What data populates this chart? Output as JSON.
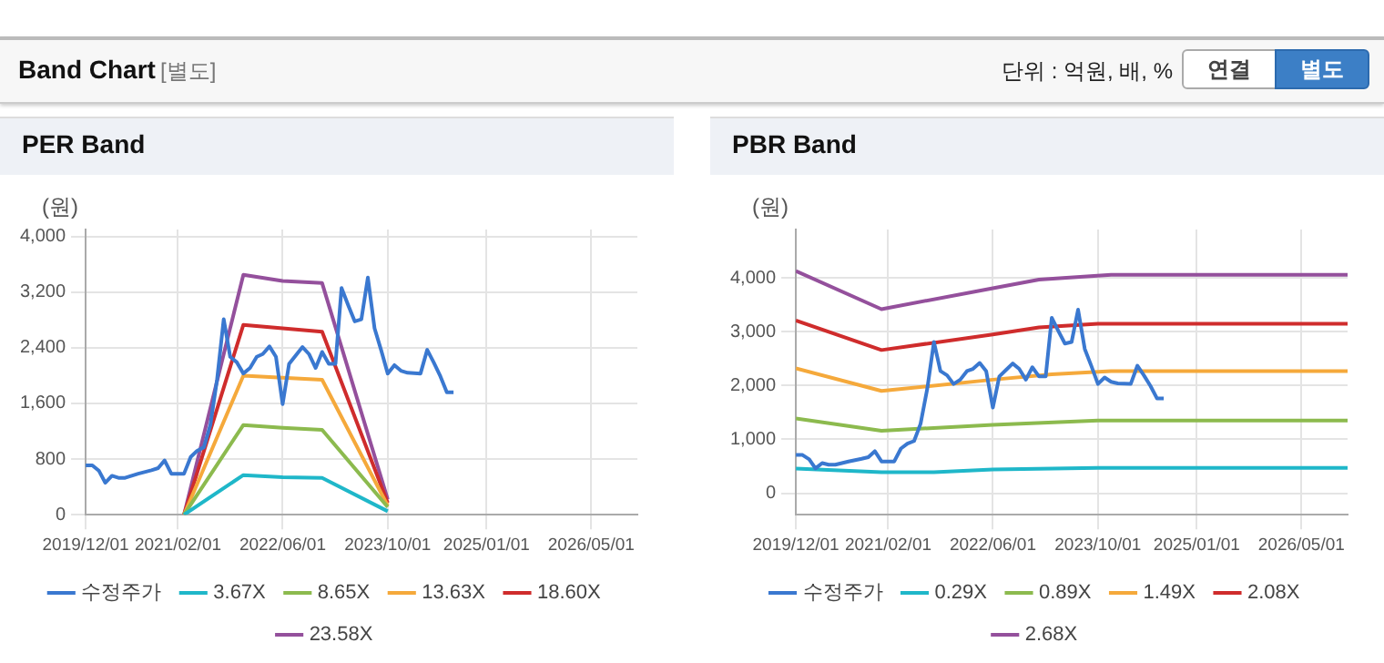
{
  "chart_data": [
    {
      "type": "line",
      "title": "PER Band",
      "ylabel": "(원)",
      "annotations": [
        "Band Chart",
        "[별도]",
        "단위 : 억원, 배, %",
        "연결",
        "별도"
      ],
      "xlim": [
        "2019-12-01",
        "2026-12-01"
      ],
      "xticks": [
        {
          "value": "2019-12-01",
          "label": "2019/12/01"
        },
        {
          "value": "2021-02-01",
          "label": "2021/02/01"
        },
        {
          "value": "2022-06-01",
          "label": "2022/06/01"
        },
        {
          "value": "2023-10-01",
          "label": "2023/10/01"
        },
        {
          "value": "2025-01-01",
          "label": "2025/01/01"
        },
        {
          "value": "2026-05-01",
          "label": "2026/05/01"
        }
      ],
      "ylim": [
        0,
        4100
      ],
      "yticks": [
        {
          "value": 0,
          "label": "0"
        },
        {
          "value": 800,
          "label": "800"
        },
        {
          "value": 1600,
          "label": "1,600"
        },
        {
          "value": 2400,
          "label": "2,400"
        },
        {
          "value": 3200,
          "label": "3,200"
        },
        {
          "value": 4000,
          "label": "4,000"
        }
      ],
      "grid": true,
      "legend": "bottom",
      "marker": "none",
      "line_style": "solid",
      "series": [
        {
          "name": "수정주가",
          "color": "#3a78d0",
          "x": [
            "2019-12",
            "2020-01",
            "2020-02",
            "2020-03",
            "2020-04",
            "2020-05",
            "2020-06",
            "2020-08",
            "2020-10",
            "2020-11",
            "2020-12",
            "2021-01",
            "2021-02",
            "2021-03",
            "2021-04",
            "2021-05",
            "2021-06",
            "2021-07",
            "2021-08",
            "2021-09",
            "2021-10",
            "2021-11",
            "2021-12",
            "2022-01",
            "2022-02",
            "2022-03",
            "2022-04",
            "2022-05",
            "2022-06",
            "2022-07",
            "2022-08",
            "2022-09",
            "2022-10",
            "2022-11",
            "2022-12",
            "2023-01",
            "2023-02",
            "2023-03",
            "2023-04",
            "2023-05",
            "2023-06",
            "2023-07",
            "2023-08",
            "2023-09",
            "2023-10",
            "2023-11",
            "2023-12",
            "2024-01",
            "2024-03",
            "2024-04",
            "2024-05",
            "2024-06",
            "2024-07",
            "2024-08"
          ],
          "values": [
            710,
            710,
            630,
            460,
            560,
            530,
            530,
            590,
            640,
            670,
            780,
            590,
            590,
            590,
            830,
            920,
            970,
            1290,
            1940,
            2810,
            2270,
            2190,
            2030,
            2110,
            2270,
            2310,
            2420,
            2270,
            1590,
            2170,
            2290,
            2410,
            2310,
            2110,
            2340,
            2170,
            2170,
            3260,
            3010,
            2780,
            2810,
            3410,
            2680,
            2360,
            2030,
            2150,
            2070,
            2040,
            2030,
            2370,
            2190,
            1990,
            1760,
            1760
          ]
        },
        {
          "name": "3.67X",
          "color": "#1fb7c9",
          "x": [
            "2021-03",
            "2021-12",
            "2022-06",
            "2022-12",
            "2023-10"
          ],
          "values": [
            0,
            570,
            540,
            530,
            50
          ]
        },
        {
          "name": "8.65X",
          "color": "#8cba4e",
          "x": [
            "2021-03",
            "2021-12",
            "2022-06",
            "2022-12",
            "2023-10"
          ],
          "values": [
            0,
            1290,
            1250,
            1220,
            110
          ]
        },
        {
          "name": "13.63X",
          "color": "#f5a93b",
          "x": [
            "2021-03",
            "2021-12",
            "2022-06",
            "2022-12",
            "2023-10"
          ],
          "values": [
            0,
            2000,
            1970,
            1940,
            130
          ]
        },
        {
          "name": "18.60X",
          "color": "#cf2c2c",
          "x": [
            "2021-03",
            "2021-12",
            "2022-06",
            "2022-12",
            "2023-10"
          ],
          "values": [
            0,
            2730,
            2680,
            2630,
            170
          ]
        },
        {
          "name": "23.58X",
          "color": "#94509c",
          "x": [
            "2021-03",
            "2021-12",
            "2022-06",
            "2022-12",
            "2023-10"
          ],
          "values": [
            0,
            3450,
            3360,
            3330,
            220
          ]
        }
      ]
    },
    {
      "type": "line",
      "title": "PBR Band",
      "ylabel": "(원)",
      "xlim": [
        "2019-12-01",
        "2026-12-01"
      ],
      "xticks": [
        {
          "value": "2019-12-01",
          "label": "2019/12/01"
        },
        {
          "value": "2021-02-01",
          "label": "2021/02/01"
        },
        {
          "value": "2022-06-01",
          "label": "2022/06/01"
        },
        {
          "value": "2023-10-01",
          "label": "2023/10/01"
        },
        {
          "value": "2025-01-01",
          "label": "2025/01/01"
        },
        {
          "value": "2026-05-01",
          "label": "2026/05/01"
        }
      ],
      "ylim": [
        -400,
        4900
      ],
      "yticks": [
        {
          "value": 0,
          "label": "0"
        },
        {
          "value": 1000,
          "label": "1,000"
        },
        {
          "value": 2000,
          "label": "2,000"
        },
        {
          "value": 3000,
          "label": "3,000"
        },
        {
          "value": 4000,
          "label": "4,000"
        }
      ],
      "grid": true,
      "legend": "bottom",
      "marker": "none",
      "line_style": "solid",
      "series": [
        {
          "name": "수정주가",
          "color": "#3a78d0",
          "x": [
            "2019-12",
            "2020-01",
            "2020-02",
            "2020-03",
            "2020-04",
            "2020-05",
            "2020-06",
            "2020-08",
            "2020-10",
            "2020-11",
            "2020-12",
            "2021-01",
            "2021-02",
            "2021-03",
            "2021-04",
            "2021-05",
            "2021-06",
            "2021-07",
            "2021-08",
            "2021-09",
            "2021-10",
            "2021-11",
            "2021-12",
            "2022-01",
            "2022-02",
            "2022-03",
            "2022-04",
            "2022-05",
            "2022-06",
            "2022-07",
            "2022-08",
            "2022-09",
            "2022-10",
            "2022-11",
            "2022-12",
            "2023-01",
            "2023-02",
            "2023-03",
            "2023-04",
            "2023-05",
            "2023-06",
            "2023-07",
            "2023-08",
            "2023-09",
            "2023-10",
            "2023-11",
            "2023-12",
            "2024-01",
            "2024-03",
            "2024-04",
            "2024-05",
            "2024-06",
            "2024-07",
            "2024-08"
          ],
          "values": [
            710,
            710,
            630,
            460,
            560,
            530,
            530,
            590,
            640,
            670,
            780,
            590,
            590,
            590,
            830,
            920,
            970,
            1290,
            1940,
            2810,
            2270,
            2190,
            2030,
            2110,
            2270,
            2310,
            2420,
            2270,
            1590,
            2170,
            2290,
            2410,
            2310,
            2110,
            2340,
            2170,
            2170,
            3260,
            3010,
            2780,
            2810,
            3410,
            2680,
            2360,
            2030,
            2150,
            2070,
            2040,
            2030,
            2370,
            2190,
            1990,
            1760,
            1760
          ]
        },
        {
          "name": "0.29X",
          "color": "#1fb7c9",
          "x": [
            "2019-12",
            "2021-01",
            "2021-09",
            "2022-06",
            "2023-10",
            "2026-12"
          ],
          "values": [
            460,
            390,
            390,
            440,
            470,
            470
          ]
        },
        {
          "name": "0.89X",
          "color": "#8cba4e",
          "x": [
            "2019-12",
            "2021-01",
            "2022-06",
            "2023-10",
            "2026-12"
          ],
          "values": [
            1390,
            1160,
            1270,
            1350,
            1350
          ]
        },
        {
          "name": "1.49X",
          "color": "#f5a93b",
          "x": [
            "2019-12",
            "2021-01",
            "2022-06",
            "2023-03",
            "2023-12",
            "2026-12"
          ],
          "values": [
            2320,
            1900,
            2110,
            2210,
            2270,
            2270
          ]
        },
        {
          "name": "2.08X",
          "color": "#cf2c2c",
          "x": [
            "2019-12",
            "2021-01",
            "2022-06",
            "2023-01",
            "2023-10",
            "2026-12"
          ],
          "values": [
            3210,
            2660,
            2950,
            3080,
            3150,
            3150
          ]
        },
        {
          "name": "2.68X",
          "color": "#94509c",
          "x": [
            "2019-12",
            "2021-01",
            "2022-06",
            "2023-01",
            "2023-12",
            "2026-12"
          ],
          "values": [
            4130,
            3420,
            3810,
            3970,
            4060,
            4060
          ]
        }
      ]
    }
  ]
}
